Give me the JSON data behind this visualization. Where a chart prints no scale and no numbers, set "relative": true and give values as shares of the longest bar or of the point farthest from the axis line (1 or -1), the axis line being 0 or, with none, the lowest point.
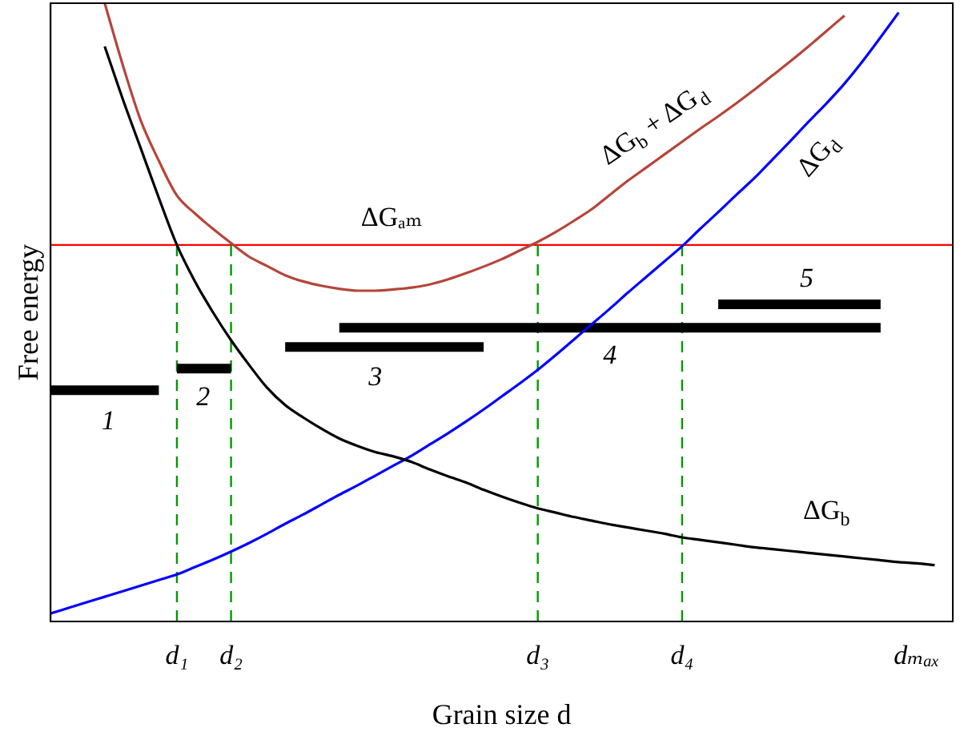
{
  "chart_data": {
    "type": "line",
    "relative": true,
    "xlabel": "Grain size d",
    "ylabel": "Free energy",
    "categories": [
      null,
      null,
      null,
      null,
      null,
      null,
      null,
      "d₁",
      null,
      null,
      "d₂",
      null,
      null,
      null,
      null,
      null,
      null,
      null,
      null,
      null,
      null,
      null,
      null,
      null,
      null,
      null,
      null,
      "d₃",
      null,
      null,
      null,
      null,
      null,
      null,
      null,
      "d₄",
      null,
      null,
      null,
      null,
      null,
      null,
      null,
      null,
      null,
      null,
      null,
      null,
      "dₘₐₓ",
      null,
      null
    ],
    "legend": false,
    "grid": false,
    "marker": "none",
    "line_style": "solid",
    "series": [
      {
        "name": "ΔG$_{b}$",
        "color": "#000000",
        "values": [
          null,
          null,
          null,
          0.93,
          0.845,
          0.765,
          0.685,
          0.609,
          0.55,
          0.5,
          0.455,
          0.415,
          0.378,
          0.35,
          0.33,
          0.312,
          0.296,
          0.284,
          0.274,
          0.267,
          0.258,
          0.246,
          0.235,
          0.225,
          0.213,
          0.202,
          0.192,
          0.183,
          0.176,
          0.169,
          0.163,
          0.157,
          0.152,
          0.147,
          0.142,
          0.136,
          0.132,
          0.128,
          0.124,
          0.12,
          0.117,
          0.114,
          0.111,
          0.108,
          0.105,
          0.102,
          0.099,
          0.096,
          0.094,
          0.091,
          null
        ]
      },
      {
        "name": "ΔG$_{d}$",
        "color": "#0000ff",
        "values": [
          0.013,
          0.022,
          0.031,
          0.04,
          0.049,
          0.058,
          0.067,
          0.076,
          0.088,
          0.1,
          0.113,
          0.127,
          0.142,
          0.158,
          0.173,
          0.189,
          0.205,
          0.22,
          0.236,
          0.252,
          0.268,
          0.286,
          0.304,
          0.323,
          0.343,
          0.364,
          0.385,
          0.407,
          0.431,
          0.456,
          0.481,
          0.506,
          0.532,
          0.557,
          0.582,
          0.607,
          0.635,
          0.662,
          0.69,
          0.717,
          0.747,
          0.777,
          0.808,
          0.838,
          0.87,
          0.906,
          0.945,
          0.985,
          null,
          null,
          null
        ]
      },
      {
        "name": "ΔG$_{b}$ + ΔG$_{d}$",
        "color": "#b5453a",
        "values": [
          null,
          null,
          null,
          1.0,
          0.9,
          0.81,
          0.745,
          0.689,
          0.66,
          0.635,
          0.612,
          0.59,
          0.575,
          0.56,
          0.55,
          0.543,
          0.538,
          0.535,
          0.535,
          0.537,
          0.54,
          0.545,
          0.553,
          0.563,
          0.574,
          0.586,
          0.6,
          0.614,
          0.63,
          0.648,
          0.667,
          0.69,
          0.713,
          0.734,
          0.755,
          0.776,
          0.797,
          0.817,
          0.838,
          0.86,
          0.883,
          0.906,
          0.93,
          0.955,
          0.98,
          null,
          null,
          null,
          null,
          null,
          null
        ]
      },
      {
        "name": "1",
        "color": "#000000",
        "values": [
          0.374,
          0.374,
          0.374,
          0.374,
          0.374,
          0.374,
          0.374,
          null,
          null,
          null,
          null,
          null,
          null,
          null,
          null,
          null,
          null,
          null,
          null,
          null,
          null,
          null,
          null,
          null,
          null,
          null,
          null,
          null,
          null,
          null,
          null,
          null,
          null,
          null,
          null,
          null,
          null,
          null,
          null,
          null,
          null,
          null,
          null,
          null,
          null,
          null,
          null,
          null,
          null,
          null,
          null
        ]
      },
      {
        "name": "2",
        "color": "#000000",
        "values": [
          null,
          null,
          null,
          null,
          null,
          null,
          null,
          0.409,
          0.409,
          0.409,
          0.409,
          null,
          null,
          null,
          null,
          null,
          null,
          null,
          null,
          null,
          null,
          null,
          null,
          null,
          null,
          null,
          null,
          null,
          null,
          null,
          null,
          null,
          null,
          null,
          null,
          null,
          null,
          null,
          null,
          null,
          null,
          null,
          null,
          null,
          null,
          null,
          null,
          null,
          null,
          null,
          null
        ]
      },
      {
        "name": "3",
        "color": "#000000",
        "values": [
          null,
          null,
          null,
          null,
          null,
          null,
          null,
          null,
          null,
          null,
          null,
          null,
          null,
          0.444,
          0.444,
          0.444,
          0.444,
          0.444,
          0.444,
          0.444,
          0.444,
          0.444,
          0.444,
          0.444,
          0.444,
          null,
          null,
          null,
          null,
          null,
          null,
          null,
          null,
          null,
          null,
          null,
          null,
          null,
          null,
          null,
          null,
          null,
          null,
          null,
          null,
          null,
          null,
          null,
          null,
          null,
          null
        ]
      },
      {
        "name": "4",
        "color": "#000000",
        "values": [
          null,
          null,
          null,
          null,
          null,
          null,
          null,
          null,
          null,
          null,
          null,
          null,
          null,
          null,
          null,
          null,
          0.475,
          0.475,
          0.475,
          0.475,
          0.475,
          0.475,
          0.475,
          0.475,
          0.475,
          0.475,
          0.475,
          0.475,
          0.475,
          0.475,
          0.475,
          0.475,
          0.475,
          0.475,
          0.475,
          0.475,
          0.475,
          0.475,
          0.475,
          0.475,
          0.475,
          0.475,
          0.475,
          0.475,
          0.475,
          0.475,
          0.475,
          null,
          null,
          null,
          null
        ]
      },
      {
        "name": "5",
        "color": "#000000",
        "values": [
          null,
          null,
          null,
          null,
          null,
          null,
          null,
          null,
          null,
          null,
          null,
          null,
          null,
          null,
          null,
          null,
          null,
          null,
          null,
          null,
          null,
          null,
          null,
          null,
          null,
          null,
          null,
          null,
          null,
          null,
          null,
          null,
          null,
          null,
          null,
          null,
          null,
          0.513,
          0.513,
          0.513,
          0.513,
          0.513,
          0.513,
          0.513,
          0.513,
          0.513,
          0.513,
          null,
          null,
          null,
          null
        ]
      }
    ],
    "ref_lines": [
      {
        "axis": "y",
        "value": 0.609,
        "label": "ΔGₐₘ",
        "color": "#ff0000",
        "line_style": "solid"
      },
      {
        "axis": "x",
        "value": "d₁",
        "color": "#009900",
        "line_style": "dashed"
      },
      {
        "axis": "x",
        "value": "d₂",
        "color": "#009900",
        "line_style": "dashed"
      },
      {
        "axis": "x",
        "value": "d₃",
        "color": "#009900",
        "line_style": "dashed"
      },
      {
        "axis": "x",
        "value": "d₄",
        "color": "#009900",
        "line_style": "dashed"
      }
    ]
  }
}
